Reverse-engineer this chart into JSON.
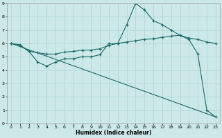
{
  "xlabel": "Humidex (Indice chaleur)",
  "xlim": [
    -0.5,
    23.5
  ],
  "ylim": [
    0,
    9
  ],
  "background_color": "#cce8e8",
  "grid_color": "#add4d4",
  "line_color": "#1a6b6b",
  "line1_x": [
    0,
    1,
    2,
    3,
    4,
    5,
    6,
    7,
    8,
    9,
    10,
    11,
    12,
    13,
    14,
    15,
    16,
    17,
    18,
    19,
    20,
    21,
    22,
    23
  ],
  "line1_y": [
    6.0,
    5.9,
    5.4,
    4.6,
    4.3,
    4.6,
    4.85,
    4.85,
    5.0,
    5.0,
    5.15,
    6.0,
    6.0,
    7.4,
    9.0,
    8.5,
    7.7,
    7.4,
    7.0,
    6.6,
    6.3,
    5.2,
    1.0,
    0.5
  ],
  "line2_x": [
    0,
    1,
    2,
    3,
    4,
    5,
    6,
    7,
    8,
    9,
    10,
    11,
    12,
    13,
    14,
    15,
    16,
    17,
    18,
    19,
    20,
    21,
    22,
    23
  ],
  "line2_y": [
    6.0,
    5.85,
    5.4,
    5.3,
    5.2,
    5.2,
    5.35,
    5.4,
    5.5,
    5.5,
    5.6,
    5.85,
    6.0,
    6.1,
    6.2,
    6.3,
    6.35,
    6.45,
    6.55,
    6.6,
    6.4,
    6.3,
    6.1,
    6.0
  ],
  "line3_x": [
    0,
    23
  ],
  "line3_y": [
    6.0,
    0.5
  ],
  "figsize": [
    3.2,
    2.0
  ],
  "dpi": 100
}
